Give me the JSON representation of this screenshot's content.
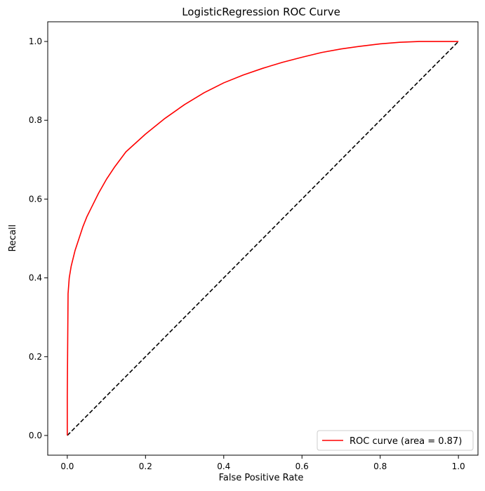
{
  "chart_data": {
    "type": "line",
    "title": "LogisticRegression ROC Curve",
    "xlabel": "False Positive Rate",
    "ylabel": "Recall",
    "xlim": [
      -0.05,
      1.05
    ],
    "ylim": [
      -0.05,
      1.05
    ],
    "xticks": [
      0.0,
      0.2,
      0.4,
      0.6,
      0.8,
      1.0
    ],
    "xtick_labels": [
      "0.0",
      "0.2",
      "0.4",
      "0.6",
      "0.8",
      "1.0"
    ],
    "yticks": [
      0.0,
      0.2,
      0.4,
      0.6,
      0.8,
      1.0
    ],
    "ytick_labels": [
      "0.0",
      "0.2",
      "0.4",
      "0.6",
      "0.8",
      "1.0"
    ],
    "grid": false,
    "legend_position": "lower-right",
    "series": [
      {
        "name": "ROC curve (area = 0.87)",
        "color": "#ff0000",
        "style": "solid",
        "x": [
          0.0,
          0.0,
          0.002,
          0.005,
          0.01,
          0.015,
          0.02,
          0.03,
          0.04,
          0.05,
          0.06,
          0.08,
          0.1,
          0.12,
          0.15,
          0.2,
          0.25,
          0.3,
          0.35,
          0.4,
          0.45,
          0.5,
          0.55,
          0.6,
          0.65,
          0.7,
          0.75,
          0.8,
          0.85,
          0.9,
          1.0
        ],
        "y": [
          0.0,
          0.1,
          0.36,
          0.4,
          0.43,
          0.45,
          0.47,
          0.5,
          0.53,
          0.555,
          0.575,
          0.615,
          0.65,
          0.68,
          0.72,
          0.765,
          0.805,
          0.84,
          0.87,
          0.895,
          0.915,
          0.932,
          0.947,
          0.96,
          0.972,
          0.981,
          0.988,
          0.994,
          0.998,
          1.0,
          1.0
        ]
      },
      {
        "name": "",
        "color": "#000000",
        "style": "dashed",
        "x": [
          0.0,
          1.0
        ],
        "y": [
          0.0,
          1.0
        ]
      }
    ]
  }
}
